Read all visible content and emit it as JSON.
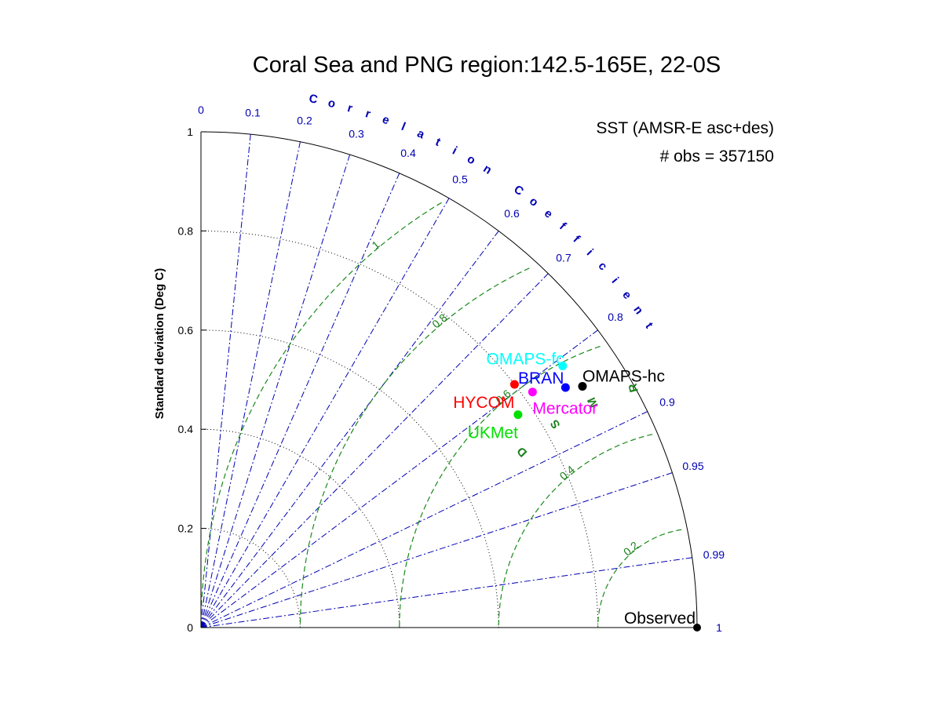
{
  "chart_data": {
    "type": "scatter",
    "subtype": "taylor-diagram",
    "title": "Coral Sea and PNG region:142.5-165E, 22-0S",
    "annotations": [
      "SST (AMSR-E asc+des)",
      "# obs = 357150"
    ],
    "ylabel": "Standard deviation (Deg C)",
    "correlation_label": "Correlation Coefficient",
    "rmsd_label": "RMSD",
    "std_range": [
      0,
      1
    ],
    "std_ticks": [
      "0",
      "0.2",
      "0.4",
      "0.6",
      "0.8",
      "1"
    ],
    "std_tick_values": [
      0,
      0.2,
      0.4,
      0.6,
      0.8,
      1
    ],
    "correlation_ticks": [
      "0",
      "0.1",
      "0.2",
      "0.3",
      "0.4",
      "0.5",
      "0.6",
      "0.7",
      "0.8",
      "0.9",
      "0.95",
      "0.99",
      "1"
    ],
    "correlation_tick_values": [
      0,
      0.1,
      0.2,
      0.3,
      0.4,
      0.5,
      0.6,
      0.7,
      0.8,
      0.9,
      0.95,
      0.99,
      1
    ],
    "rmsd_contours": [
      0.2,
      0.4,
      0.6,
      0.8,
      1.0
    ],
    "rmsd_contour_labels": [
      "0.2",
      "0.4",
      "0.6",
      "0.8",
      "1"
    ],
    "grid": true,
    "reference": {
      "name": "Observed",
      "std": 1.0,
      "correlation": 1.0,
      "color": "#000000"
    },
    "series": [
      {
        "name": "OMAPS-fc",
        "std": 0.9,
        "correlation": 0.81,
        "color": "#00ffff"
      },
      {
        "name": "BRAN",
        "std": 0.88,
        "correlation": 0.835,
        "color": "#0000ff"
      },
      {
        "name": "OMAPS-hc",
        "std": 0.91,
        "correlation": 0.845,
        "color": "#000000"
      },
      {
        "name": "HYCOM",
        "std": 0.8,
        "correlation": 0.79,
        "color": "#ff0000"
      },
      {
        "name": "Mercator",
        "std": 0.82,
        "correlation": 0.815,
        "color": "#ff00ff"
      },
      {
        "name": "UKMet",
        "std": 0.77,
        "correlation": 0.83,
        "color": "#00e000"
      }
    ]
  }
}
